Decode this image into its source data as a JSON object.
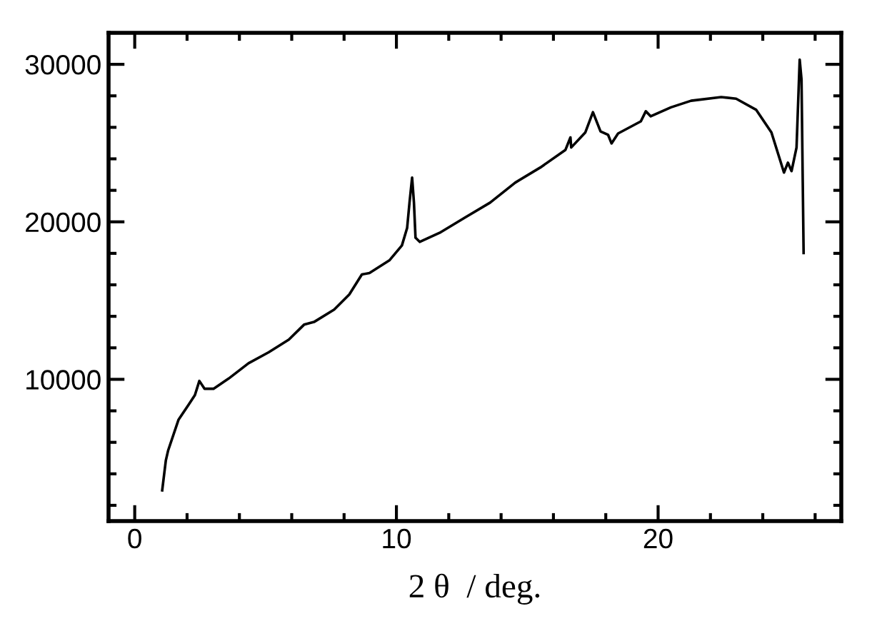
{
  "chart_data": {
    "type": "line",
    "xlabel": "2 θ  / deg.",
    "xlim": [
      -1,
      27
    ],
    "ylim": [
      1000,
      32000
    ],
    "xticks": [
      0,
      10,
      20
    ],
    "yticks": [
      10000,
      20000,
      30000
    ],
    "grid": false,
    "marker": "none",
    "line_style": "solid",
    "series": [
      {
        "color": "#000000",
        "x": [
          1.05,
          1.19,
          1.28,
          1.67,
          2.05,
          2.3,
          2.47,
          2.67,
          3.01,
          3.59,
          4.35,
          5.12,
          5.89,
          6.47,
          6.85,
          7.62,
          8.2,
          8.68,
          8.97,
          9.73,
          10.21,
          10.41,
          10.5,
          10.6,
          10.67,
          10.73,
          10.89,
          11.65,
          12.61,
          13.58,
          14.54,
          15.5,
          16.46,
          16.65,
          16.68,
          17.22,
          17.51,
          17.8,
          18.09,
          18.22,
          18.47,
          19.34,
          19.53,
          19.72,
          20.49,
          21.26,
          22.41,
          22.98,
          23.75,
          24.33,
          24.81,
          24.96,
          25.1,
          25.29,
          25.41,
          25.48,
          25.56
        ],
        "values": [
          2950,
          4860,
          5500,
          7420,
          8370,
          9000,
          9900,
          9400,
          9400,
          10050,
          11020,
          11720,
          12520,
          13470,
          13640,
          14430,
          15390,
          16660,
          16750,
          17550,
          18500,
          19620,
          21220,
          22810,
          21220,
          18990,
          18730,
          19300,
          20260,
          21220,
          22490,
          23450,
          24570,
          25360,
          24720,
          25680,
          26960,
          25740,
          25520,
          24980,
          25610,
          26380,
          27020,
          26700,
          27270,
          27690,
          27920,
          27820,
          27110,
          25680,
          23130,
          23760,
          23220,
          24720,
          30300,
          29030,
          18020
        ]
      }
    ]
  }
}
